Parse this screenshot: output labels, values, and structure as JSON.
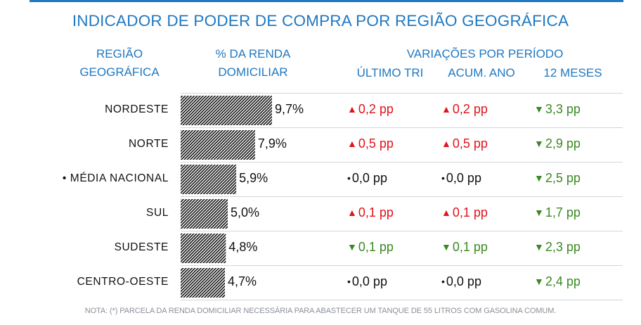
{
  "title": "INDICADOR DE PODER DE COMPRA POR REGIÃO GEOGRÁFICA",
  "headers": {
    "region_line1": "REGIÃO",
    "region_line2": "GEOGRÁFICA",
    "income_line1": "% DA RENDA",
    "income_line2": "DOMICILIAR",
    "variations": "VARIAÇÕES POR PERÍODO",
    "col_quarter": "ÚLTIMO TRI",
    "col_ytd": "ACUM. ANO",
    "col_12m": "12 MESES"
  },
  "colors": {
    "accent": "#1f78c1",
    "up": "#e0131b",
    "down": "#3a8a22",
    "neutral": "#111111"
  },
  "chart_data": {
    "type": "bar",
    "orientation": "horizontal",
    "categories": [
      "NORDESTE",
      "NORTE",
      "• MÉDIA NACIONAL",
      "SUL",
      "SUDESTE",
      "CENTRO-OESTE"
    ],
    "values": [
      9.7,
      7.9,
      5.9,
      5.0,
      4.8,
      4.7
    ],
    "value_labels": [
      "9,7%",
      "7,9%",
      "5,9%",
      "5,0%",
      "4,8%",
      "4,7%"
    ],
    "xlim": [
      0,
      10.5
    ],
    "bar_fill": "black-white-hatch",
    "variations": [
      {
        "quarter": "0,2 pp",
        "quarter_dir": "up",
        "ytd": "0,2 pp",
        "ytd_dir": "up",
        "m12": "3,3 pp",
        "m12_dir": "down"
      },
      {
        "quarter": "0,5 pp",
        "quarter_dir": "up",
        "ytd": "0,5 pp",
        "ytd_dir": "up",
        "m12": "2,9 pp",
        "m12_dir": "down"
      },
      {
        "quarter": "0,0 pp",
        "quarter_dir": "flat",
        "ytd": "0,0 pp",
        "ytd_dir": "flat",
        "m12": "2,5 pp",
        "m12_dir": "down"
      },
      {
        "quarter": "0,1 pp",
        "quarter_dir": "up",
        "ytd": "0,1 pp",
        "ytd_dir": "up",
        "m12": "1,7 pp",
        "m12_dir": "down"
      },
      {
        "quarter": "0,1 pp",
        "quarter_dir": "down",
        "ytd": "0,1 pp",
        "ytd_dir": "down",
        "m12": "2,3 pp",
        "m12_dir": "down"
      },
      {
        "quarter": "0,0 pp",
        "quarter_dir": "flat",
        "ytd": "0,0 pp",
        "ytd_dir": "flat",
        "m12": "2,4 pp",
        "m12_dir": "down"
      }
    ]
  },
  "note": "NOTA: (*) PARCELA DA RENDA DOMICILIAR NECESSÁRIA PARA ABASTECER UM TANQUE DE 55 LITROS COM GASOLINA COMUM."
}
